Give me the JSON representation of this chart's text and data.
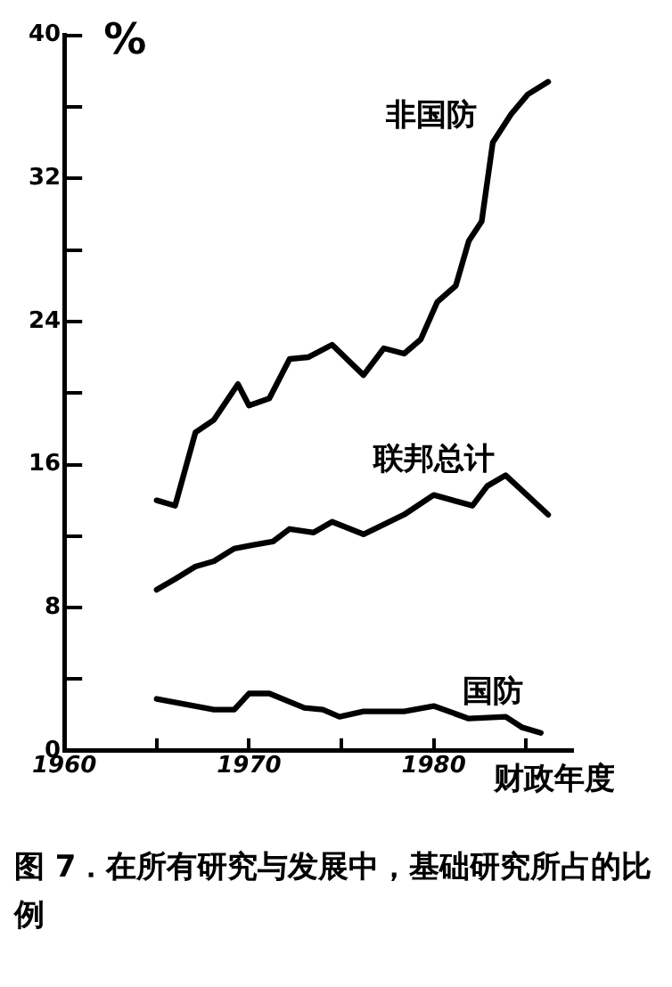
{
  "chart_data": {
    "type": "line",
    "ylabel": "%",
    "xlabel": "财政年度",
    "xlim": [
      1960,
      1987.5
    ],
    "xticks": [
      1960,
      {
        "value": 1965,
        "label": null
      },
      1970,
      {
        "value": 1975,
        "label": null
      },
      1980,
      {
        "value": 1985,
        "label": null
      }
    ],
    "ylim": [
      0,
      40
    ],
    "yticks": [
      0,
      {
        "value": 4,
        "label": null
      },
      8,
      {
        "value": 12,
        "label": null
      },
      16,
      {
        "value": 20,
        "label": null
      },
      24,
      {
        "value": 28,
        "label": null
      },
      32,
      {
        "value": 36,
        "label": null
      },
      40
    ],
    "grid": false,
    "legend": false,
    "marker": "none",
    "line_style": "solid",
    "series": [
      {
        "name": "非国防",
        "color": "#000000",
        "x": [
          1965.0,
          1966.0,
          1967.1,
          1968.1,
          1969.4,
          1970.0,
          1971.1,
          1972.2,
          1973.2,
          1974.5,
          1976.2,
          1977.3,
          1978.4,
          1979.3,
          1980.2,
          1981.2,
          1981.9,
          1982.6,
          1983.2,
          1984.2,
          1985.1,
          1986.2
        ],
        "values": [
          14.0,
          13.7,
          17.8,
          18.5,
          20.5,
          19.3,
          19.7,
          21.9,
          22.0,
          22.7,
          21.0,
          22.5,
          22.2,
          23.0,
          25.1,
          26.0,
          28.5,
          29.6,
          34.0,
          35.6,
          36.7,
          37.4
        ]
      },
      {
        "name": "联邦总计",
        "color": "#000000",
        "x": [
          1965.0,
          1966.0,
          1967.1,
          1968.1,
          1969.2,
          1970.2,
          1971.3,
          1972.2,
          1973.5,
          1974.5,
          1976.2,
          1978.4,
          1980.0,
          1982.1,
          1982.9,
          1983.9,
          1986.2
        ],
        "values": [
          9.0,
          9.6,
          10.3,
          10.6,
          11.3,
          11.5,
          11.7,
          12.4,
          12.2,
          12.8,
          12.1,
          13.2,
          14.3,
          13.7,
          14.8,
          15.4,
          13.2
        ]
      },
      {
        "name": "国防",
        "color": "#000000",
        "x": [
          1965.0,
          1968.1,
          1969.2,
          1970.0,
          1971.1,
          1973.0,
          1974.0,
          1974.9,
          1976.2,
          1978.4,
          1980.0,
          1981.9,
          1983.9,
          1984.8,
          1985.8
        ],
        "values": [
          2.9,
          2.3,
          2.3,
          3.2,
          3.2,
          2.4,
          2.3,
          1.9,
          2.2,
          2.2,
          2.5,
          1.8,
          1.9,
          1.3,
          1.0
        ]
      }
    ],
    "annotations": [
      "图 7．在所有研究与发展中，基础研究所占的比例"
    ]
  }
}
